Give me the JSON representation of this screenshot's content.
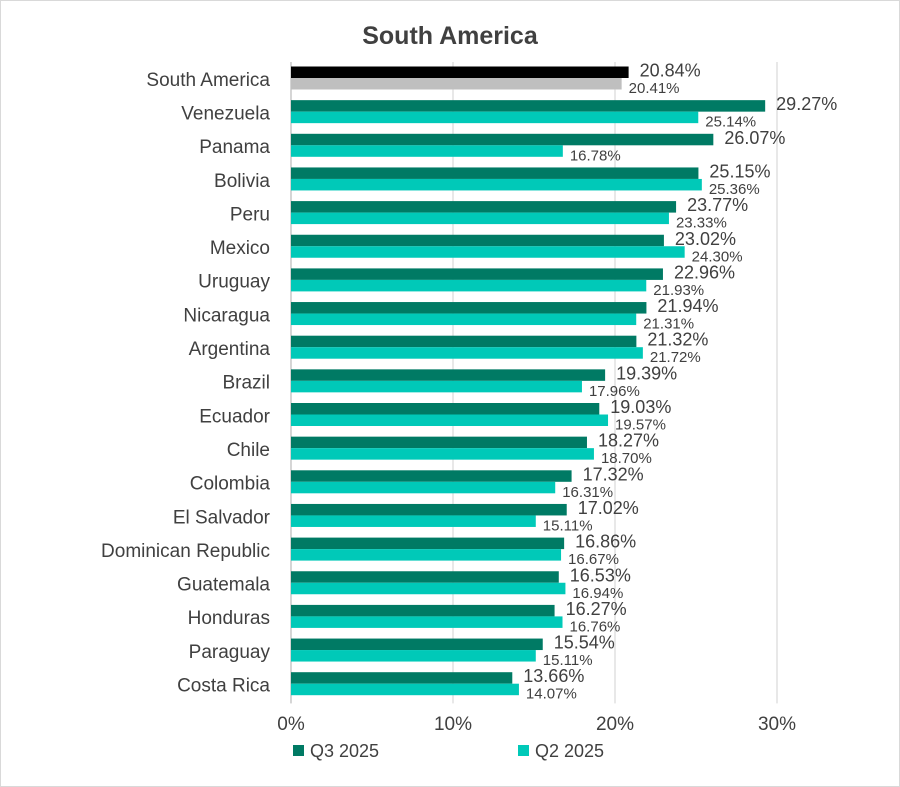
{
  "chart_data": {
    "type": "bar",
    "orientation": "horizontal",
    "title": "South America",
    "xlabel": "",
    "ylabel": "",
    "xlim": [
      0,
      30
    ],
    "x_ticks": [
      "0%",
      "10%",
      "20%",
      "30%"
    ],
    "x_tick_values": [
      0,
      10,
      20,
      30
    ],
    "value_suffix": "%",
    "grid": "vertical",
    "legend_position": "bottom",
    "categories": [
      "South America",
      "Venezuela",
      "Panama",
      "Bolivia",
      "Peru",
      "Mexico",
      "Uruguay",
      "Nicaragua",
      "Argentina",
      "Brazil",
      "Ecuador",
      "Chile",
      "Colombia",
      "El Salvador",
      "Dominican Republic",
      "Guatemala",
      "Honduras",
      "Paraguay",
      "Costa Rica"
    ],
    "series": [
      {
        "name": "Q3 2025",
        "color": "#007a64",
        "highlight_color": "#000000",
        "values": [
          20.84,
          29.27,
          26.07,
          25.15,
          23.77,
          23.02,
          22.96,
          21.94,
          21.32,
          19.39,
          19.03,
          18.27,
          17.32,
          17.02,
          16.86,
          16.53,
          16.27,
          15.54,
          13.66
        ],
        "labels": [
          "20.84%",
          "29.27%",
          "26.07%",
          "25.15%",
          "23.77%",
          "23.02%",
          "22.96%",
          "21.94%",
          "21.32%",
          "19.39%",
          "19.03%",
          "18.27%",
          "17.32%",
          "17.02%",
          "16.86%",
          "16.53%",
          "16.27%",
          "15.54%",
          "13.66%"
        ]
      },
      {
        "name": "Q2 2025",
        "color": "#00c9b8",
        "highlight_color": "#bfbfbf",
        "values": [
          20.41,
          25.14,
          16.78,
          25.36,
          23.33,
          24.3,
          21.93,
          21.31,
          21.72,
          17.96,
          19.57,
          18.7,
          16.31,
          15.11,
          16.67,
          16.94,
          16.76,
          15.11,
          14.07
        ],
        "labels": [
          "20.41%",
          "25.14%",
          "16.78%",
          "25.36%",
          "23.33%",
          "24.30%",
          "21.93%",
          "21.31%",
          "21.72%",
          "17.96%",
          "19.57%",
          "18.70%",
          "16.31%",
          "15.11%",
          "16.67%",
          "16.94%",
          "16.76%",
          "15.11%",
          "14.07%"
        ]
      }
    ]
  }
}
